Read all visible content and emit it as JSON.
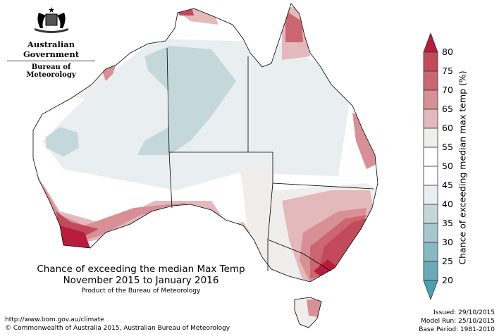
{
  "header": {
    "logo_line1": "Australian Government",
    "logo_line2": "Bureau of Meteorology"
  },
  "title": {
    "line1": "Chance of exceeding the median Max Temp",
    "line2": "November 2015 to January 2016",
    "product": "Product of the Bureau of Meteorology"
  },
  "footer": {
    "url": "http://www.bom.gov.au/climate",
    "copyright": "© Commonwealth of Australia 2015, Australian Bureau of Meteorology",
    "issued": "Issued: 29/10/2015",
    "model_run": "Model Run: 25/10/2015",
    "base_period": "Base Period: 1981-2010"
  },
  "legend": {
    "label": "Chance of exceeding median max temp (%)",
    "ticks": [
      "80",
      "75",
      "70",
      "65",
      "60",
      "55",
      "50",
      "45",
      "40",
      "35",
      "30",
      "25",
      "20"
    ],
    "colors": [
      "#c24a5a",
      "#cc6670",
      "#d88f95",
      "#e3b9bc",
      "#efeeec",
      "#ffffff",
      "#ffffff",
      "#e9eff1",
      "#c4d8dc",
      "#a6c8cd",
      "#88b9c3",
      "#6aa9b8"
    ],
    "over_color": "#b81c3c",
    "under_color": "#4aa0b0"
  }
}
